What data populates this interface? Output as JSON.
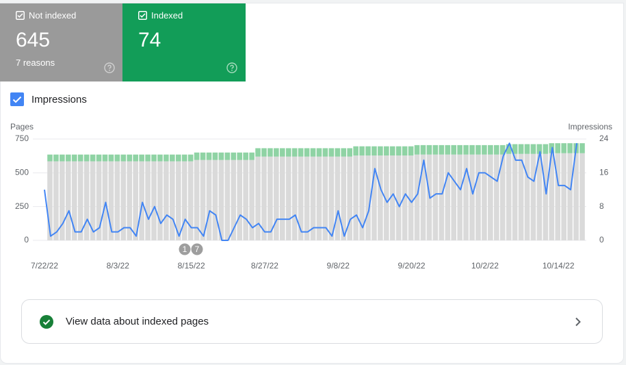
{
  "tiles": [
    {
      "value": 645,
      "note": "7 reasons"
    },
    {
      "value": 74
    }
  ],
  "link": "View data about indexed pages",
  "chart_data": {
    "type": "bar-line",
    "ylabel": "Pages",
    "y2label": "Impressions",
    "ylim": [
      0,
      750
    ],
    "yticks": [
      0,
      250,
      500,
      750
    ],
    "y2lim": [
      0,
      24
    ],
    "y2ticks": [
      0,
      8,
      16,
      24
    ],
    "grid": true,
    "annotations": [
      "1",
      "7"
    ],
    "categories": [
      "7/22/22",
      null,
      null,
      null,
      null,
      null,
      null,
      null,
      null,
      null,
      null,
      null,
      "8/3/22",
      null,
      null,
      null,
      null,
      null,
      null,
      null,
      null,
      null,
      null,
      null,
      "8/15/22",
      null,
      null,
      null,
      null,
      null,
      null,
      null,
      null,
      null,
      null,
      null,
      "8/27/22",
      null,
      null,
      null,
      null,
      null,
      null,
      null,
      null,
      null,
      null,
      null,
      "9/8/22",
      null,
      null,
      null,
      null,
      null,
      null,
      null,
      null,
      null,
      null,
      null,
      "9/20/22",
      null,
      null,
      null,
      null,
      null,
      null,
      null,
      null,
      null,
      null,
      null,
      "10/2/22",
      null,
      null,
      null,
      null,
      null,
      null,
      null,
      null,
      null,
      null,
      null,
      "10/14/22",
      null,
      null,
      null
    ],
    "series": [
      {
        "name": "Not indexed",
        "color": "#dadada",
        "values": [
          585,
          585,
          585,
          585,
          585,
          585,
          585,
          585,
          585,
          585,
          585,
          585,
          585,
          585,
          585,
          585,
          585,
          585,
          585,
          585,
          585,
          585,
          585,
          585,
          595,
          595,
          595,
          595,
          595,
          595,
          595,
          595,
          595,
          595,
          620,
          620,
          620,
          620,
          620,
          620,
          620,
          620,
          620,
          620,
          620,
          620,
          620,
          620,
          620,
          620,
          628,
          628,
          628,
          628,
          628,
          628,
          628,
          628,
          628,
          628,
          635,
          635,
          635,
          635,
          635,
          635,
          635,
          635,
          635,
          635,
          635,
          635,
          635,
          635,
          635,
          640,
          640,
          640,
          640,
          640,
          640,
          640,
          645,
          645,
          645,
          645,
          645,
          645
        ]
      },
      {
        "name": "Indexed",
        "color": "#8fd3a4",
        "values": [
          50,
          50,
          50,
          50,
          50,
          50,
          50,
          50,
          50,
          50,
          50,
          50,
          50,
          50,
          50,
          50,
          50,
          50,
          50,
          50,
          50,
          50,
          50,
          50,
          55,
          55,
          55,
          55,
          55,
          55,
          55,
          55,
          55,
          55,
          62,
          62,
          62,
          62,
          62,
          62,
          62,
          62,
          62,
          62,
          62,
          62,
          62,
          62,
          62,
          62,
          68,
          68,
          68,
          68,
          68,
          68,
          68,
          68,
          68,
          68,
          70,
          70,
          70,
          70,
          70,
          70,
          70,
          70,
          70,
          70,
          70,
          70,
          70,
          70,
          70,
          72,
          72,
          72,
          72,
          72,
          72,
          72,
          74,
          74,
          74,
          74,
          74,
          74
        ]
      },
      {
        "name": "Impressions",
        "color": "#4285f4",
        "axis": "y2",
        "values": [
          12,
          1,
          2,
          4,
          7,
          2,
          2,
          5,
          2,
          3,
          9,
          2,
          2,
          3,
          3,
          1,
          9,
          5,
          8,
          4,
          6,
          5,
          1,
          5,
          3,
          3,
          1,
          7,
          6,
          0,
          0,
          3,
          6,
          5,
          3,
          4,
          2,
          2,
          5,
          5,
          5,
          6,
          2,
          2,
          3,
          3,
          3,
          1,
          7,
          1,
          5,
          6,
          3,
          7,
          17,
          12,
          9,
          11,
          8,
          11,
          9,
          11,
          19,
          10,
          11,
          11,
          16,
          14,
          12,
          17,
          11,
          16,
          16,
          15,
          14,
          20,
          23,
          19,
          19,
          15,
          14,
          21,
          11,
          22,
          13,
          13,
          12,
          23
        ]
      }
    ]
  }
}
